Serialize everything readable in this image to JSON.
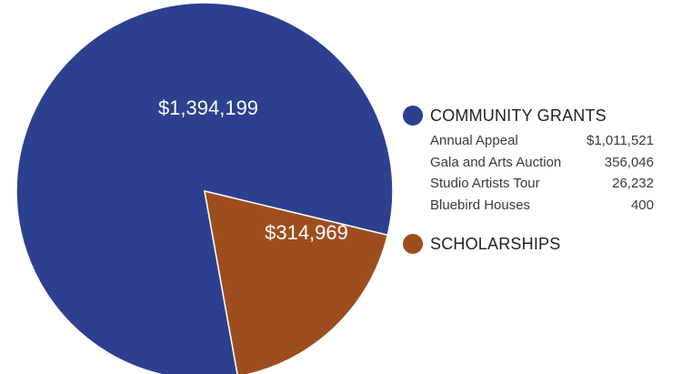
{
  "chart_data": {
    "type": "pie",
    "slices": [
      {
        "name": "COMMUNITY GRANTS",
        "value": 1394199,
        "label": "$1,394,199",
        "color": "#2d3f8f"
      },
      {
        "name": "SCHOLARSHIPS",
        "value": 314969,
        "label": "$314,969",
        "color": "#9e4e1e"
      }
    ],
    "legend": {
      "placement": "right",
      "groups": [
        {
          "title": "COMMUNITY GRANTS",
          "color": "#2d3f8f",
          "items": [
            {
              "label": "Annual Appeal",
              "value": "$1,011,521"
            },
            {
              "label": "Gala and Arts Auction",
              "value": "356,046"
            },
            {
              "label": "Studio Artists Tour",
              "value": "26,232"
            },
            {
              "label": "Bluebird Houses",
              "value": "400"
            }
          ]
        },
        {
          "title": "SCHOLARSHIPS",
          "color": "#9e4e1e",
          "items": []
        }
      ]
    }
  }
}
